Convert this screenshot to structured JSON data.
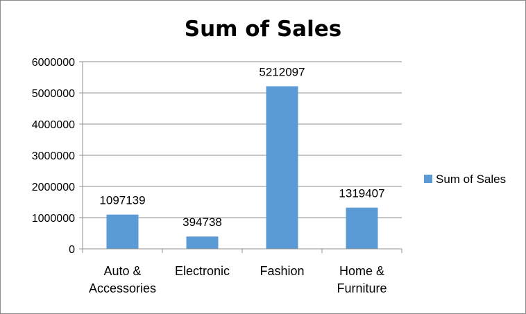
{
  "chart_data": {
    "type": "bar",
    "title": "Sum of Sales",
    "categories": [
      [
        "Auto &",
        "Accessories"
      ],
      [
        "Electronic"
      ],
      [
        "Fashion"
      ],
      [
        "Home &",
        "Furniture"
      ]
    ],
    "series": [
      {
        "name": "Sum of Sales",
        "values": [
          1097139,
          394738,
          5212097,
          1319407
        ],
        "data_labels": [
          "1097139",
          "394738",
          "5212097",
          "1319407"
        ],
        "color": "#5b9bd5"
      }
    ],
    "y_ticks": [
      "0",
      "1000000",
      "2000000",
      "3000000",
      "4000000",
      "5000000",
      "6000000"
    ],
    "ylim": [
      0,
      6000000
    ],
    "grid": true,
    "legend_position": "right",
    "xlabel": "",
    "ylabel": ""
  }
}
